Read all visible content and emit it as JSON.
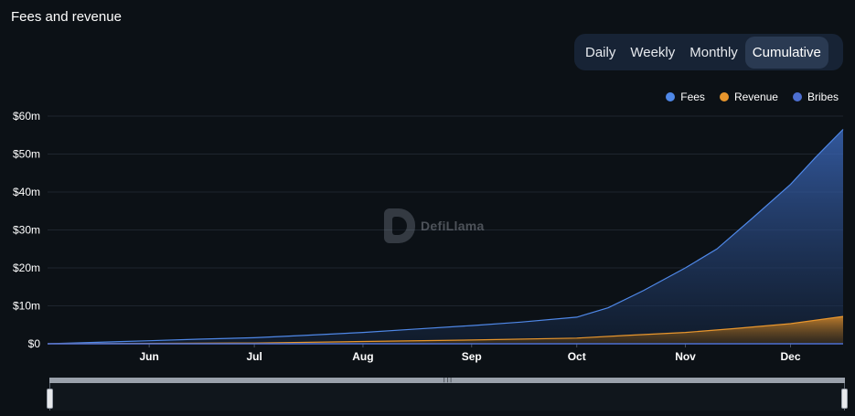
{
  "header": {
    "title": "Fees and revenue"
  },
  "tabs": [
    {
      "label": "Daily",
      "active": false
    },
    {
      "label": "Weekly",
      "active": false
    },
    {
      "label": "Monthly",
      "active": false
    },
    {
      "label": "Cumulative",
      "active": true
    }
  ],
  "watermark": {
    "text": "DefiLlama"
  },
  "chart_data": {
    "type": "area",
    "title": "Fees and revenue",
    "legend_position": "top-right",
    "grid": true,
    "ylim": [
      0,
      60000000
    ],
    "yticks": [
      {
        "value": 0,
        "label": "$0"
      },
      {
        "value": 10000000,
        "label": "$10m"
      },
      {
        "value": 20000000,
        "label": "$20m"
      },
      {
        "value": 30000000,
        "label": "$30m"
      },
      {
        "value": 40000000,
        "label": "$40m"
      },
      {
        "value": 50000000,
        "label": "$50m"
      },
      {
        "value": 60000000,
        "label": "$60m"
      }
    ],
    "xlim": [
      "2023-05-03",
      "2023-12-16"
    ],
    "xticks": [
      {
        "value": "2023-06-01",
        "label": "Jun"
      },
      {
        "value": "2023-07-01",
        "label": "Jul"
      },
      {
        "value": "2023-08-01",
        "label": "Aug"
      },
      {
        "value": "2023-09-01",
        "label": "Sep"
      },
      {
        "value": "2023-10-01",
        "label": "Oct"
      },
      {
        "value": "2023-11-01",
        "label": "Nov"
      },
      {
        "value": "2023-12-01",
        "label": "Dec"
      }
    ],
    "series": [
      {
        "name": "Fees",
        "color": "#4f88e8",
        "points": [
          [
            "2023-05-03",
            0
          ],
          [
            "2023-06-01",
            800000
          ],
          [
            "2023-06-15",
            1200000
          ],
          [
            "2023-07-01",
            1600000
          ],
          [
            "2023-07-15",
            2200000
          ],
          [
            "2023-08-01",
            3000000
          ],
          [
            "2023-08-15",
            3800000
          ],
          [
            "2023-09-01",
            4800000
          ],
          [
            "2023-09-15",
            5700000
          ],
          [
            "2023-10-01",
            7000000
          ],
          [
            "2023-10-10",
            9500000
          ],
          [
            "2023-10-20",
            14000000
          ],
          [
            "2023-11-01",
            20000000
          ],
          [
            "2023-11-10",
            25000000
          ],
          [
            "2023-11-20",
            33000000
          ],
          [
            "2023-12-01",
            42000000
          ],
          [
            "2023-12-08",
            49000000
          ],
          [
            "2023-12-16",
            56500000
          ]
        ]
      },
      {
        "name": "Revenue",
        "color": "#e8962d",
        "points": [
          [
            "2023-05-03",
            0
          ],
          [
            "2023-07-01",
            200000
          ],
          [
            "2023-08-01",
            600000
          ],
          [
            "2023-09-01",
            1000000
          ],
          [
            "2023-10-01",
            1500000
          ],
          [
            "2023-10-15",
            2200000
          ],
          [
            "2023-11-01",
            3000000
          ],
          [
            "2023-11-15",
            4000000
          ],
          [
            "2023-12-01",
            5300000
          ],
          [
            "2023-12-16",
            7200000
          ]
        ]
      },
      {
        "name": "Bribes",
        "color": "#4d6fd1",
        "points": [
          [
            "2023-05-03",
            0
          ],
          [
            "2023-12-16",
            0
          ]
        ]
      }
    ]
  }
}
